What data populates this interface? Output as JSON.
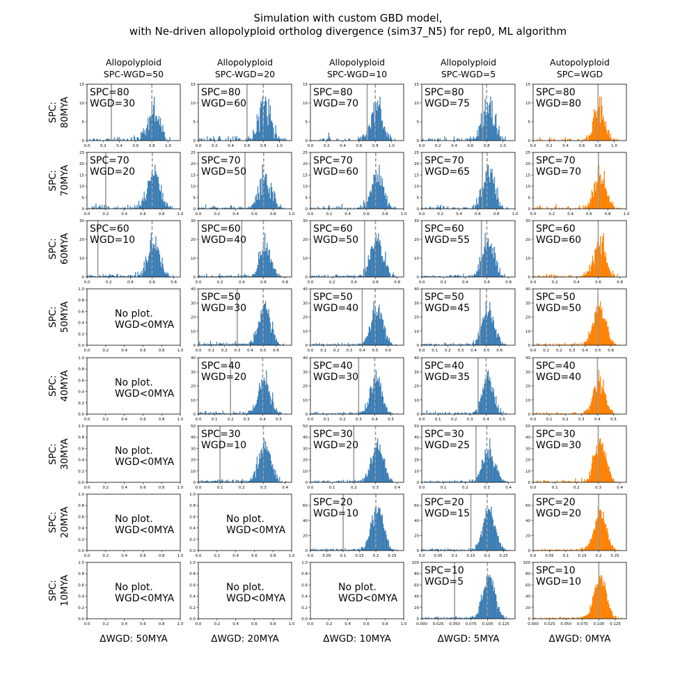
{
  "chart_data": {
    "type": "histogram-grid",
    "title_lines": [
      "Simulation with custom GBD model,",
      "with Ne-driven allopolyploid ortholog divergence (sim37_N5) for rep0, ML algorithm"
    ],
    "columns": [
      {
        "title": [
          "Allopolyploid",
          "SPC-WGD=50"
        ],
        "xlabel": "ΔWGD: 50MYA",
        "color": "#3a7db5",
        "delta": 50
      },
      {
        "title": [
          "Allopolyploid",
          "SPC-WGD=20"
        ],
        "xlabel": "ΔWGD: 20MYA",
        "color": "#3a7db5",
        "delta": 20
      },
      {
        "title": [
          "Allopolyploid",
          "SPC-WGD=10"
        ],
        "xlabel": "ΔWGD: 10MYA",
        "color": "#3a7db5",
        "delta": 10
      },
      {
        "title": [
          "Allopolyploid",
          "SPC-WGD=5"
        ],
        "xlabel": "ΔWGD: 5MYA",
        "color": "#3a7db5",
        "delta": 5
      },
      {
        "title": [
          "Autopolyploid",
          "SPC=WGD"
        ],
        "xlabel": "ΔWGD: 0MYA",
        "color": "#ff8100",
        "delta": 0
      }
    ],
    "rows": [
      {
        "label": [
          "SPC:",
          "80MYA"
        ],
        "spc": 80,
        "ylim": [
          0,
          15
        ],
        "yticks": [
          0,
          5,
          10,
          15
        ],
        "xlim": [
          0,
          1.15
        ],
        "xticks": [
          0.0,
          0.2,
          0.4,
          0.6,
          0.8,
          1.0
        ],
        "tickfmt": 1
      },
      {
        "label": [
          "SPC:",
          "70MYA"
        ],
        "spc": 70,
        "ylim": [
          0,
          25
        ],
        "yticks": [
          0,
          5,
          10,
          15,
          20,
          25
        ],
        "xlim": [
          0,
          1.0
        ],
        "xticks": [
          0.0,
          0.2,
          0.4,
          0.6,
          0.8,
          1.0
        ],
        "tickfmt": 1
      },
      {
        "label": [
          "SPC:",
          "60MYA"
        ],
        "spc": 60,
        "ylim": [
          0,
          30
        ],
        "yticks": [
          0,
          10,
          20,
          30
        ],
        "xlim": [
          0,
          0.86
        ],
        "xticks": [
          0.0,
          0.2,
          0.4,
          0.6,
          0.8
        ],
        "tickfmt": 1
      },
      {
        "label": [
          "SPC:",
          "50MYA"
        ],
        "spc": 50,
        "ylim": [
          0,
          40
        ],
        "yticks": [
          0,
          10,
          20,
          30,
          40
        ],
        "xlim": [
          0,
          0.72
        ],
        "xticks": [
          0.0,
          0.1,
          0.2,
          0.3,
          0.4,
          0.5,
          0.6
        ],
        "tickfmt": 1
      },
      {
        "label": [
          "SPC:",
          "40MYA"
        ],
        "spc": 40,
        "ylim": [
          0,
          40
        ],
        "yticks": [
          0,
          10,
          20,
          30,
          40
        ],
        "xlim": [
          0,
          0.58
        ],
        "xticks": [
          0.0,
          0.1,
          0.2,
          0.3,
          0.4,
          0.5
        ],
        "tickfmt": 1
      },
      {
        "label": [
          "SPC:",
          "30MYA"
        ],
        "spc": 30,
        "ylim": [
          0,
          50
        ],
        "yticks": [
          0,
          10,
          20,
          30,
          40,
          50
        ],
        "xlim": [
          0,
          0.43
        ],
        "xticks": [
          0.0,
          0.1,
          0.2,
          0.3,
          0.4
        ],
        "tickfmt": 1
      },
      {
        "label": [
          "SPC:",
          "20MYA"
        ],
        "spc": 20,
        "ylim": [
          0,
          75
        ],
        "yticks": [
          0,
          20,
          40,
          60
        ],
        "xlim": [
          0,
          0.285
        ],
        "xticks": [
          0.0,
          0.05,
          0.1,
          0.15,
          0.2,
          0.25
        ],
        "tickfmt": 2
      },
      {
        "label": [
          "SPC:",
          "10MYA"
        ],
        "spc": 10,
        "ylim": [
          0,
          100
        ],
        "yticks": [
          0,
          20,
          40,
          60,
          80,
          100
        ],
        "xlim": [
          0,
          0.142
        ],
        "xticks": [
          0.0,
          0.025,
          0.05,
          0.075,
          0.1,
          0.125
        ],
        "tickfmt": 3
      }
    ],
    "empty_ylim": [
      0,
      1.0
    ],
    "empty_yticks": [
      0.0,
      0.2,
      0.4,
      0.6,
      0.8,
      1.0
    ],
    "empty_xlim": [
      0,
      1.0
    ],
    "empty_xticks": [
      0.0,
      0.2,
      0.4,
      0.6,
      0.8,
      1.0
    ],
    "no_plot_text": [
      "No plot.",
      "WGD<0MYA"
    ],
    "spc_prefix": "SPC=",
    "wgd_prefix": "WGD=",
    "marker_colors": {
      "wgd_line": "#9a9a9a",
      "spc_line": "#9a9a9a"
    },
    "ks_per_mya": 0.01
  }
}
